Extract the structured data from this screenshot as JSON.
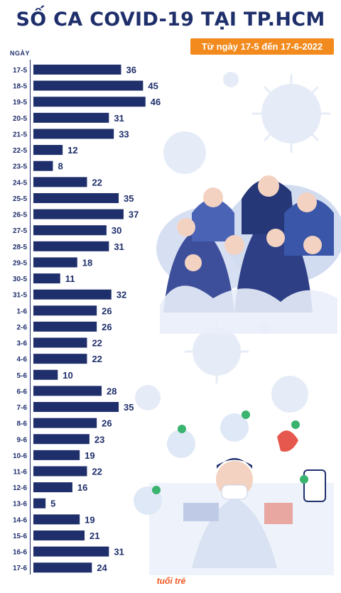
{
  "title": "SỐ CA COVID-19 TẠI TP.HCM",
  "subtitle": "Từ ngày 17-5 đến 17-6-2022",
  "logo_text": "tuổi trẻ",
  "colors": {
    "bar": "#1f2f6b",
    "accent": "#f28a1e",
    "title": "#1f2f6b"
  },
  "chart_data": {
    "type": "bar",
    "orientation": "horizontal",
    "title": "SỐ CA COVID-19 TẠI TP.HCM",
    "subtitle": "Từ ngày 17-5 đến 17-6-2022",
    "ylabel": "NGÀY",
    "xlabel": "",
    "categories": [
      "17-5",
      "18-5",
      "19-5",
      "20-5",
      "21-5",
      "22-5",
      "23-5",
      "24-5",
      "25-5",
      "26-5",
      "27-5",
      "28-5",
      "29-5",
      "30-5",
      "31-5",
      "1-6",
      "2-6",
      "3-6",
      "4-6",
      "5-6",
      "6-6",
      "7-6",
      "8-6",
      "9-6",
      "10-6",
      "11-6",
      "12-6",
      "13-6",
      "14-6",
      "15-6",
      "16-6",
      "17-6"
    ],
    "values": [
      36,
      45,
      46,
      31,
      33,
      12,
      8,
      22,
      35,
      37,
      30,
      31,
      18,
      11,
      32,
      26,
      26,
      22,
      22,
      10,
      28,
      35,
      26,
      23,
      19,
      22,
      16,
      5,
      19,
      21,
      31,
      24
    ],
    "xlim": [
      0,
      50
    ],
    "grid": false,
    "data_labels": true
  }
}
